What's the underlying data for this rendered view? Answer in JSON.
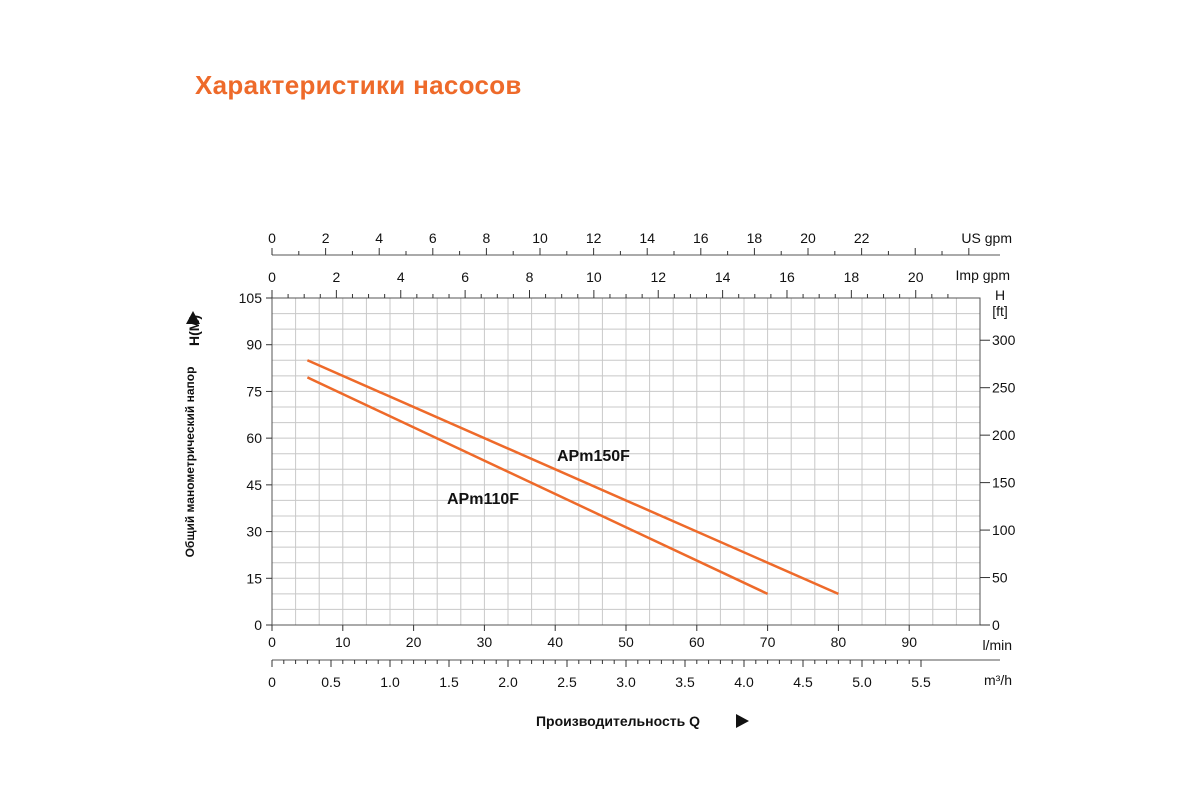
{
  "title": "Характеристики насосов",
  "colors": {
    "title": "#ee6a2a",
    "series": "#ee6a2a",
    "grid": "#c8c8c8"
  },
  "chart_data": {
    "type": "line",
    "title": "Характеристики насосов",
    "xlabel": "Производительность Q",
    "ylabel": "Общий манометрический напор",
    "ylabel_unit": "H(M)",
    "xlim": [
      0,
      100
    ],
    "ylim": [
      0,
      105
    ],
    "grid": true,
    "series": [
      {
        "name": "APm150F",
        "x": [
          5,
          80
        ],
        "y": [
          85,
          10
        ]
      },
      {
        "name": "APm110F",
        "x": [
          5,
          70
        ],
        "y": [
          79.5,
          10
        ]
      }
    ],
    "y_ticks": [
      0,
      15,
      30,
      45,
      60,
      75,
      90,
      105
    ],
    "x_axes": {
      "lmin": {
        "unit": "l/min",
        "ticks": [
          {
            "label": "0",
            "value": 0
          },
          {
            "label": "10",
            "value": 10
          },
          {
            "label": "20",
            "value": 20
          },
          {
            "label": "30",
            "value": 30
          },
          {
            "label": "40",
            "value": 40
          },
          {
            "label": "50",
            "value": 50
          },
          {
            "label": "60",
            "value": 60
          },
          {
            "label": "70",
            "value": 70
          },
          {
            "label": "80",
            "value": 80
          },
          {
            "label": "90",
            "value": 90
          }
        ]
      },
      "m3h": {
        "unit": "m³/h",
        "ticks": [
          {
            "label": "0",
            "value": 0
          },
          {
            "label": "0.5",
            "value": 0.5
          },
          {
            "label": "1.0",
            "value": 1.0
          },
          {
            "label": "1.5",
            "value": 1.5
          },
          {
            "label": "2.0",
            "value": 2.0
          },
          {
            "label": "2.5",
            "value": 2.5
          },
          {
            "label": "3.0",
            "value": 3.0
          },
          {
            "label": "3.5",
            "value": 3.5
          },
          {
            "label": "4.0",
            "value": 4.0
          },
          {
            "label": "4.5",
            "value": 4.5
          },
          {
            "label": "5.0",
            "value": 5.0
          },
          {
            "label": "5.5",
            "value": 5.5
          }
        ]
      },
      "us_gpm": {
        "unit": "US gpm",
        "ticks": [
          {
            "label": "0",
            "value": 0
          },
          {
            "label": "2",
            "value": 2
          },
          {
            "label": "4",
            "value": 4
          },
          {
            "label": "6",
            "value": 6
          },
          {
            "label": "8",
            "value": 8
          },
          {
            "label": "10",
            "value": 10
          },
          {
            "label": "12",
            "value": 12
          },
          {
            "label": "14",
            "value": 14
          },
          {
            "label": "16",
            "value": 16
          },
          {
            "label": "18",
            "value": 18
          },
          {
            "label": "20",
            "value": 20
          },
          {
            "label": "22",
            "value": 22
          }
        ]
      },
      "imp_gpm": {
        "unit": "Imp gpm",
        "ticks": [
          {
            "label": "0",
            "value": 0
          },
          {
            "label": "2",
            "value": 2
          },
          {
            "label": "4",
            "value": 4
          },
          {
            "label": "6",
            "value": 6
          },
          {
            "label": "8",
            "value": 8
          },
          {
            "label": "10",
            "value": 10
          },
          {
            "label": "12",
            "value": 12
          },
          {
            "label": "14",
            "value": 14
          },
          {
            "label": "16",
            "value": 16
          },
          {
            "label": "18",
            "value": 18
          },
          {
            "label": "20",
            "value": 20
          }
        ]
      }
    },
    "y_right": {
      "unit_label_top": "H",
      "unit_label_bottom": "[ft]",
      "ticks": [
        {
          "label": "0",
          "value": 0
        },
        {
          "label": "50",
          "value": 50
        },
        {
          "label": "100",
          "value": 100
        },
        {
          "label": "150",
          "value": 150
        },
        {
          "label": "200",
          "value": 200
        },
        {
          "label": "250",
          "value": 250
        },
        {
          "label": "300",
          "value": 300
        }
      ]
    }
  }
}
